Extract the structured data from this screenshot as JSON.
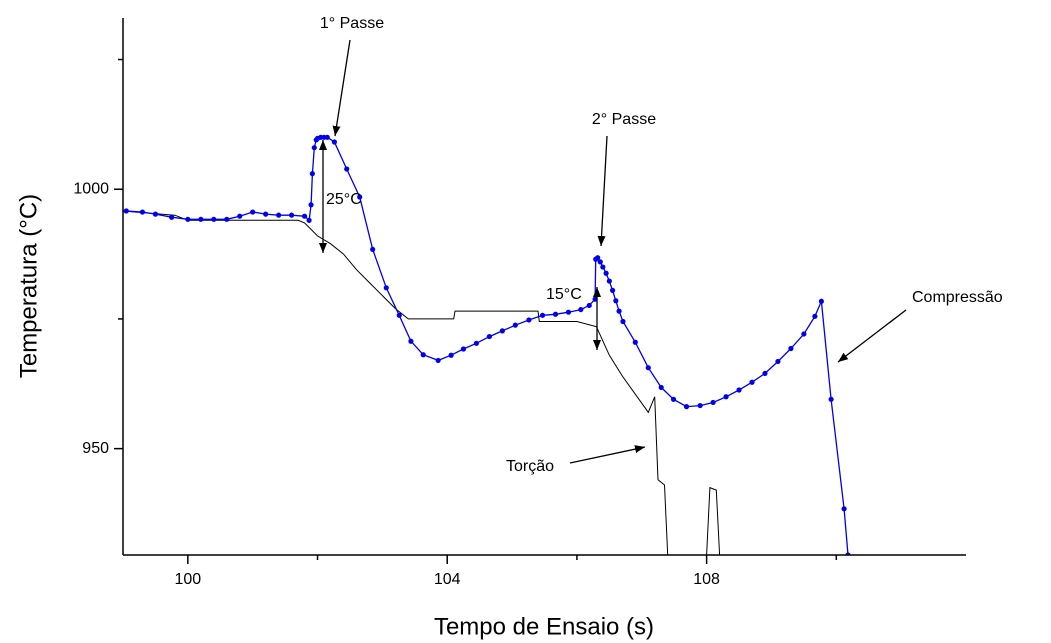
{
  "chart_data": {
    "type": "line",
    "xlabel": "Tempo de Ensaio (s)",
    "ylabel": "Temperatura (°C)",
    "xlim": [
      99,
      112
    ],
    "ylim": [
      929.5,
      1033
    ],
    "xticks": [
      100,
      104,
      108
    ],
    "xminor": [
      102,
      106,
      110
    ],
    "yticks": [
      950,
      1000
    ],
    "yminor": [
      975,
      1025
    ],
    "series": [
      {
        "name": "Compressão",
        "color": "#0000ee",
        "markers": true,
        "x": [
          99.05,
          99.3,
          99.5,
          99.75,
          100.0,
          100.2,
          100.4,
          100.6,
          100.8,
          101.0,
          101.2,
          101.4,
          101.6,
          101.8,
          101.87,
          101.9,
          101.92,
          101.95,
          101.98,
          102.0,
          102.05,
          102.1,
          102.15,
          102.26,
          102.45,
          102.65,
          102.85,
          103.06,
          103.26,
          103.44,
          103.63,
          103.86,
          104.06,
          104.25,
          104.45,
          104.65,
          104.85,
          105.05,
          105.26,
          105.47,
          105.67,
          105.87,
          106.06,
          106.19,
          106.28,
          106.29,
          106.32,
          106.36,
          106.4,
          106.45,
          106.5,
          106.55,
          106.6,
          106.65,
          106.71,
          106.9,
          107.1,
          107.3,
          107.49,
          107.69,
          107.9,
          108.1,
          108.3,
          108.5,
          108.7,
          108.9,
          109.1,
          109.3,
          109.5,
          109.67,
          109.77,
          109.92,
          110.12,
          110.18
        ],
        "values": [
          995.8,
          995.6,
          995.2,
          994.6,
          994.2,
          994.2,
          994.2,
          994.2,
          994.8,
          995.6,
          995.2,
          995.0,
          995.0,
          994.8,
          994.0,
          997.0,
          1003.0,
          1008.0,
          1009.5,
          1009.8,
          1010.0,
          1010.0,
          1010.0,
          1009.1,
          1003.9,
          998.5,
          988.4,
          981.0,
          975.7,
          970.7,
          968.1,
          967.0,
          968.0,
          969.2,
          970.3,
          971.6,
          972.7,
          973.8,
          974.8,
          975.7,
          975.9,
          976.3,
          976.8,
          977.6,
          978.8,
          986.5,
          986.8,
          986.0,
          985.0,
          983.8,
          982.3,
          980.5,
          978.5,
          976.5,
          974.5,
          970.5,
          965.6,
          961.8,
          959.5,
          958.1,
          958.3,
          958.9,
          960.0,
          961.3,
          962.8,
          964.5,
          966.8,
          969.3,
          972.1,
          975.5,
          978.4,
          959.5,
          938.4,
          929.5
        ]
      },
      {
        "name": "Torção",
        "color": "#000000",
        "markers": false,
        "x": [
          99.0,
          99.8,
          100.0,
          101.7,
          101.8,
          102.0,
          102.2,
          102.4,
          102.6,
          102.8,
          103.0,
          103.2,
          103.4,
          104.1,
          104.12,
          105.4,
          105.42,
          106.0,
          106.3,
          106.5,
          106.7,
          106.9,
          107.1,
          107.2,
          107.25,
          107.35,
          107.4,
          107.45,
          108.0,
          108.05,
          108.15,
          108.2
        ],
        "values": [
          995.8,
          995.0,
          994.0,
          994.0,
          993.5,
          991.0,
          989.5,
          987.5,
          984.5,
          982.0,
          979.5,
          977.0,
          975.0,
          975.0,
          976.5,
          976.5,
          974.5,
          974.5,
          973.5,
          968.0,
          964.0,
          960.5,
          957.0,
          960.0,
          944.0,
          943.0,
          929.5,
          null,
          929.5,
          942.5,
          942.0,
          929.5
        ]
      }
    ],
    "annotations": [
      "1° Passe",
      "2° Passe",
      "25°C",
      "15°C"
    ]
  }
}
